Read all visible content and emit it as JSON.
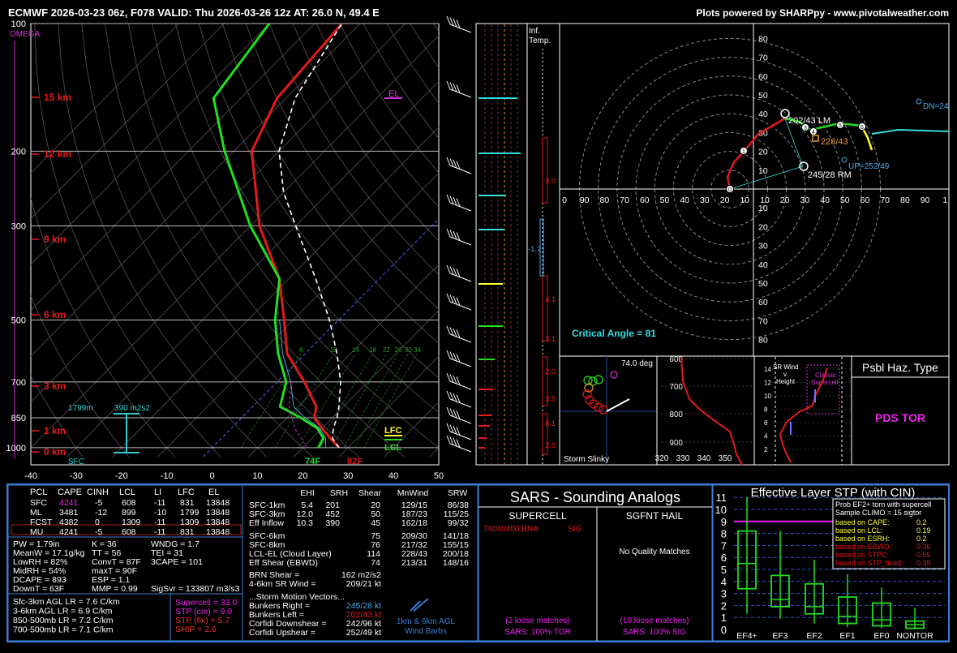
{
  "header": {
    "title": "ECMWF 2026-03-23 06z, F078  VALID: Thu 2026-03-26 12z  AT: 26.0 N, 49.4 E",
    "credit": "Plots powered by SHARPpy - www.pivotalweather.com"
  },
  "skewt": {
    "omega_label": "OMEGA",
    "pressure_ticks": [
      "100",
      "200",
      "300",
      "500",
      "700",
      "850",
      "1000"
    ],
    "pressures": [
      100,
      200,
      300,
      500,
      700,
      850,
      1000
    ],
    "height_labels": [
      "15 km",
      "12 km",
      "9 km",
      "6 km",
      "3 km",
      "1 km",
      "0 km"
    ],
    "temp_ticks": [
      "-40",
      "-30",
      "-20",
      "-10",
      "0",
      "10",
      "20",
      "30",
      "40",
      "50"
    ],
    "temps": [
      -40,
      -30,
      -20,
      -10,
      0,
      10,
      20,
      30,
      40,
      50
    ],
    "el_label": "EL",
    "lfc_label": "LFC",
    "lcl_label": "LCL",
    "sfc_label": "SFC",
    "eff_inflow_bottom": "1799m",
    "eff_inflow_srh": "390 m2s2",
    "sfc_td": "74F",
    "sfc_t": "82F",
    "mixing_ratio_labels": [
      "6",
      "10",
      "14",
      "18",
      "22",
      "26",
      "30",
      "34"
    ],
    "colors": {
      "temp": "#e41a1c",
      "dewpoint": "#22dd22",
      "parcel": "#ffffff",
      "wetbulb": "#66ccff"
    }
  },
  "chart_data": {
    "type": "line",
    "title": "ECMWF 2026-03-23 06z, F078  VALID: Thu 2026-03-26 12z  AT: 26.0 N, 49.4 E",
    "xlabel": "",
    "ylabel": "",
    "xlim": [
      -40,
      50
    ],
    "ylim": [
      1000,
      100
    ],
    "series": [
      {
        "values": [
          [
            1000,
            28.0
          ],
          [
            950,
            24.0
          ],
          [
            900,
            20.0
          ],
          [
            850,
            16.0
          ],
          [
            800,
            14.0
          ],
          [
            700,
            6.0
          ],
          [
            600,
            -4.0
          ],
          [
            500,
            -12.0
          ],
          [
            400,
            -22.0
          ],
          [
            300,
            -38.0
          ],
          [
            200,
            -56.0
          ],
          [
            150,
            -62.0
          ],
          [
            100,
            -64.0
          ]
        ]
      },
      {
        "values": [
          [
            1000,
            23.5
          ],
          [
            950,
            22.5
          ],
          [
            900,
            19.0
          ],
          [
            850,
            13.0
          ],
          [
            800,
            6.0
          ],
          [
            700,
            2.0
          ],
          [
            600,
            -6.0
          ],
          [
            500,
            -14.0
          ],
          [
            400,
            -22.0
          ],
          [
            300,
            -40.0
          ],
          [
            200,
            -62.0
          ],
          [
            150,
            -76.0
          ],
          [
            100,
            -80.0
          ]
        ]
      },
      {
        "values": [
          [
            1000,
            28.0
          ],
          [
            950,
            24.5
          ],
          [
            900,
            22.5
          ],
          [
            850,
            21.0
          ],
          [
            800,
            19.0
          ],
          [
            700,
            14.0
          ],
          [
            600,
            7.0
          ],
          [
            500,
            -2.0
          ],
          [
            400,
            -14.0
          ],
          [
            300,
            -30.0
          ],
          [
            250,
            -40.0
          ],
          [
            200,
            -50.0
          ],
          [
            150,
            -58.0
          ],
          [
            100,
            -64.0
          ]
        ]
      }
    ]
  },
  "hodograph": {
    "rings": [
      "10",
      "20",
      "30",
      "40",
      "50",
      "60",
      "70",
      "80"
    ],
    "top_axis": [
      "0",
      "90",
      "80",
      "70",
      "60",
      "50",
      "40",
      "30",
      "20",
      "10",
      "10",
      "20",
      "30",
      "40",
      "50",
      "60",
      "70",
      "80",
      "90",
      "1"
    ],
    "lm_label": "202/43 LM",
    "rm_label": "245/28 RM",
    "mean_label": "228/43",
    "up_label": "UP=252/49",
    "dn_label": "DN=24",
    "critical_angle": "Critical Angle = 81"
  },
  "inferred_temp": {
    "label_line1": "Inf.",
    "label_line2": "Temp.",
    "values": [
      "3.0",
      "-1.2",
      "4.1",
      "3.1",
      "2.0",
      "3.5",
      "6.1",
      "2.8"
    ]
  },
  "slinky": {
    "deg": "74.0 deg",
    "label": "Storm Slinky",
    "pticks": [
      "600",
      "700",
      "800",
      "900"
    ],
    "xticks": [
      "320",
      "330",
      "340",
      "350"
    ]
  },
  "sr_wind": {
    "title_l1": "SR Wind",
    "title_l2": "v.",
    "title_l3": "Height",
    "classic_l1": "Classic",
    "classic_l2": "Supercell",
    "yticks": [
      "14",
      "12",
      "10",
      "8",
      "6",
      "4",
      "2"
    ]
  },
  "hazard": {
    "title": "Psbl Haz. Type",
    "type": "PDS TOR"
  },
  "parcels": {
    "headers": [
      "PCL",
      "CAPE",
      "CINH",
      "LCL",
      "LI",
      "LFC",
      "EL"
    ],
    "rows": [
      [
        "SFC",
        "4241",
        "-5",
        "608",
        "-11",
        "831",
        "13848"
      ],
      [
        "ML",
        "3481",
        "-12",
        "899",
        "-10",
        "1799",
        "13848"
      ],
      [
        "FCST",
        "4382",
        "0",
        "1309",
        "-11",
        "1309",
        "13848"
      ],
      [
        "MU",
        "4241",
        "-5",
        "608",
        "-11",
        "831",
        "13848"
      ]
    ]
  },
  "indices": {
    "col1": [
      "PW = 1.79in",
      "MeanW = 17.1g/kg",
      "LowRH = 82%",
      "MidRH = 54%",
      "DCAPE = 893",
      "DownT = 63F"
    ],
    "col2": [
      "K = 36",
      "TT = 56",
      "ConvT = 87F",
      "maxT = 90F",
      "ESP = 1.1",
      "MMP = 0.99"
    ],
    "col3": [
      "WNDG = 1.7",
      "TEI = 31",
      "3CAPE = 101",
      "",
      "",
      "SigSvr = 133807 m3/s3"
    ]
  },
  "lapse": [
    "Sfc-3km AGL LR = 7.6 C/km",
    "3-6km AGL LR = 6.9 C/km",
    "850-500mb LR = 7.2 C/km",
    "700-500mb LR = 7.1 C/km"
  ],
  "composite": {
    "supercell": "Supercell = 33.0",
    "stp_cin": "STP (cin) = 9.0",
    "stp_fix": "STP (fix) = 5.7",
    "ship": "SHIP = 2.6"
  },
  "kinematics": {
    "headers": [
      "EHI",
      "SRH",
      "Shear",
      "MnWind",
      "SRW"
    ],
    "rows": [
      [
        "SFC-1km",
        "5.4",
        "201",
        "20",
        "129/15",
        "86/38"
      ],
      [
        "SFC-3km",
        "12.0",
        "452",
        "50",
        "187/23",
        "115/25"
      ],
      [
        "Eff Inflow",
        "10.3",
        "390",
        "45",
        "162/18",
        "99/32"
      ],
      [
        "SFC-6km",
        "",
        "",
        "75",
        "209/30",
        "141/18"
      ],
      [
        "SFC-8km",
        "",
        "",
        "76",
        "217/32",
        "155/15"
      ],
      [
        "LCL-EL (Cloud Layer)",
        "",
        "",
        "114",
        "228/43",
        "200/18"
      ],
      [
        "Eff Shear (EBWD)",
        "",
        "",
        "74",
        "213/31",
        "148/16"
      ]
    ],
    "brn": "BRN Shear =",
    "brn_val": "162 m2/s2",
    "srw46": "4-6km SR Wind =",
    "srw46_val": "209/21 kt",
    "smv": "...Storm Motion Vectors...",
    "smv_rows": [
      [
        "Bunkers Right =",
        "245/28 kt"
      ],
      [
        "Bunkers Left =",
        "202/43 kt"
      ],
      [
        "Corfidi Downshear =",
        "242/96 kt"
      ],
      [
        "Corfidi Upshear =",
        "252/49 kt"
      ]
    ],
    "barbs_l1": "1km & 6km AGL",
    "barbs_l2": "Wind Barbs"
  },
  "sars": {
    "title": "SARS - Sounding Analogs",
    "supercell": "SUPERCELL",
    "hail": "SGFNT HAIL",
    "match": "74040400.BNA",
    "match_tag": "SIG",
    "hail_none": "No Quality Matches",
    "sc_loose": "(2 loose matches)",
    "sc_pct": "SARS: 100% TOR",
    "hail_loose": "(10 loose matches)",
    "hail_pct": "SARS: 100% SIG"
  },
  "stp": {
    "title": "Effective Layer STP (with CIN)",
    "yticks": [
      "0",
      "1",
      "2",
      "3",
      "4",
      "5",
      "6",
      "7",
      "8",
      "9",
      "10",
      "11"
    ],
    "categories": [
      "EF4+",
      "EF3",
      "EF2",
      "EF1",
      "EF0",
      "NONTOR"
    ],
    "prob_title": "Prob EF2+ torn with supercell",
    "sample": "Sample CLIMO = 15 sigtor",
    "probs": [
      [
        "based on CAPE:",
        "0.2"
      ],
      [
        "based on LCL:",
        "0.19"
      ],
      [
        "based on ESRH:",
        "0.2"
      ],
      [
        "based on EBWD:",
        "0.36"
      ],
      [
        "based on STPC:",
        "0.55"
      ],
      [
        "based on STP_fixed:",
        "0.39"
      ]
    ],
    "value": 9.0
  }
}
